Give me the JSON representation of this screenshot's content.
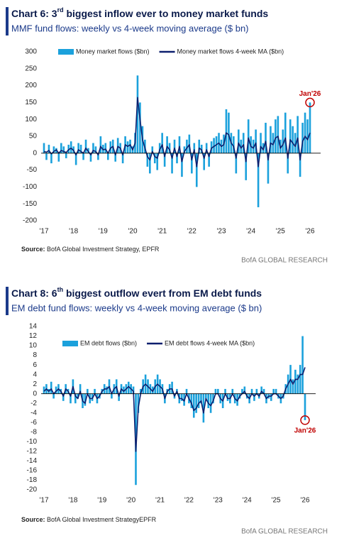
{
  "chart_data": [
    {
      "type": "bar",
      "title": [
        "Chart 6: 3",
        "rd",
        " biggest inflow ever to money market funds"
      ],
      "subtitle": "MMF fund flows: weekly vs 4-week moving average ($ bn)",
      "categories": [
        "'17",
        null,
        null,
        null,
        null,
        null,
        null,
        null,
        null,
        null,
        null,
        null,
        "'18",
        null,
        null,
        null,
        null,
        null,
        null,
        null,
        null,
        null,
        null,
        null,
        "'19",
        null,
        null,
        null,
        null,
        null,
        null,
        null,
        null,
        null,
        null,
        null,
        "'20",
        null,
        null,
        null,
        null,
        null,
        null,
        null,
        null,
        null,
        null,
        null,
        "'21",
        null,
        null,
        null,
        null,
        null,
        null,
        null,
        null,
        null,
        null,
        null,
        "'22",
        null,
        null,
        null,
        null,
        null,
        null,
        null,
        null,
        null,
        null,
        null,
        "'23",
        null,
        null,
        null,
        null,
        null,
        null,
        null,
        null,
        null,
        null,
        null,
        "'24",
        null,
        null,
        null,
        null,
        null,
        null,
        null,
        null,
        null,
        null,
        null,
        "'25",
        null,
        null,
        null,
        null,
        null,
        null,
        null,
        null,
        null,
        null,
        null,
        "'26"
      ],
      "series": [
        {
          "name": "Money market flows ($bn)",
          "type": "bar",
          "color": "#1ba1dc",
          "values": [
            30,
            -20,
            25,
            -30,
            20,
            15,
            -25,
            30,
            20,
            -15,
            25,
            35,
            20,
            -35,
            30,
            25,
            -20,
            40,
            15,
            -25,
            30,
            20,
            -20,
            50,
            25,
            30,
            -20,
            35,
            40,
            -25,
            45,
            30,
            -30,
            50,
            35,
            40,
            20,
            60,
            230,
            150,
            80,
            40,
            -40,
            -60,
            20,
            -30,
            -50,
            30,
            60,
            -40,
            50,
            30,
            -60,
            40,
            -30,
            50,
            -70,
            20,
            40,
            55,
            -60,
            30,
            -100,
            40,
            25,
            -50,
            30,
            -40,
            35,
            45,
            50,
            60,
            40,
            55,
            130,
            120,
            60,
            50,
            -60,
            70,
            40,
            60,
            -80,
            100,
            50,
            40,
            70,
            -160,
            60,
            30,
            90,
            -90,
            80,
            60,
            100,
            110,
            40,
            70,
            120,
            -60,
            100,
            80,
            60,
            110,
            -70,
            90,
            120,
            100,
            150
          ]
        },
        {
          "name": "Money market flows 4-week MA ($bn)",
          "type": "line",
          "color": "#0d1f6e",
          "values": [
            5,
            3,
            8,
            -2,
            5,
            10,
            0,
            8,
            5,
            2,
            10,
            15,
            8,
            -5,
            10,
            5,
            0,
            15,
            5,
            -5,
            8,
            5,
            -5,
            20,
            10,
            12,
            0,
            15,
            20,
            -5,
            20,
            15,
            -5,
            25,
            20,
            25,
            10,
            30,
            165,
            100,
            40,
            15,
            -10,
            -20,
            5,
            -10,
            -15,
            10,
            25,
            -10,
            20,
            10,
            -15,
            15,
            -10,
            20,
            -25,
            5,
            15,
            25,
            -20,
            10,
            -40,
            15,
            10,
            -15,
            10,
            -10,
            15,
            20,
            25,
            30,
            20,
            25,
            60,
            55,
            30,
            20,
            -15,
            30,
            15,
            25,
            -25,
            45,
            20,
            15,
            30,
            -40,
            20,
            10,
            35,
            -20,
            30,
            25,
            45,
            50,
            15,
            25,
            45,
            -15,
            40,
            30,
            20,
            45,
            -20,
            35,
            50,
            40,
            60
          ]
        }
      ],
      "ylim": [
        -200,
        300
      ],
      "yticks": [
        -200,
        -150,
        -100,
        -50,
        0,
        50,
        100,
        150,
        200,
        250,
        300
      ],
      "annotation": "Jan'26",
      "source_label": "Source:",
      "source": "BofA Global Investment Strategy, EPFR",
      "footer": "BofA GLOBAL RESEARCH"
    },
    {
      "type": "bar",
      "title": [
        "Chart 8: 6",
        "th",
        " biggest outflow evert from EM debt funds"
      ],
      "subtitle": "EM debt fund flows: weekly vs 4-week moving average ($ bn)",
      "categories": [
        "'17",
        null,
        null,
        null,
        null,
        null,
        null,
        null,
        null,
        null,
        null,
        null,
        "'18",
        null,
        null,
        null,
        null,
        null,
        null,
        null,
        null,
        null,
        null,
        null,
        "'19",
        null,
        null,
        null,
        null,
        null,
        null,
        null,
        null,
        null,
        null,
        null,
        "'20",
        null,
        null,
        null,
        null,
        null,
        null,
        null,
        null,
        null,
        null,
        null,
        "'21",
        null,
        null,
        null,
        null,
        null,
        null,
        null,
        null,
        null,
        null,
        null,
        "'22",
        null,
        null,
        null,
        null,
        null,
        null,
        null,
        null,
        null,
        null,
        null,
        "'23",
        null,
        null,
        null,
        null,
        null,
        null,
        null,
        null,
        null,
        null,
        null,
        "'24",
        null,
        null,
        null,
        null,
        null,
        null,
        null,
        null,
        null,
        null,
        null,
        "'25",
        null,
        null,
        null,
        null,
        null,
        null,
        null,
        null,
        null,
        null,
        null,
        "'26"
      ],
      "series": [
        {
          "name": "EM debt flows ($bn)",
          "type": "bar",
          "color": "#1ba1dc",
          "values": [
            1.5,
            2,
            1,
            2.5,
            -1,
            1.5,
            2,
            1,
            -1.5,
            2,
            1,
            -2,
            3,
            -2,
            -1,
            2,
            -3,
            -2.5,
            1,
            -2,
            -1.5,
            1,
            -2,
            -1,
            1,
            2,
            1.5,
            3,
            -1,
            2,
            3,
            -1.5,
            2,
            1.5,
            2,
            2.5,
            2,
            1.5,
            -19,
            -4,
            1,
            3,
            4,
            3,
            2,
            1.5,
            3,
            4,
            3,
            2,
            -2,
            1,
            2,
            2.5,
            -1,
            1,
            -2,
            -1.5,
            -2.5,
            1,
            -2,
            -3,
            -5,
            -4,
            -3,
            -2,
            -6,
            -1,
            -3,
            -4,
            -2,
            1,
            1,
            -2,
            -3,
            1,
            -1.5,
            -2,
            1,
            -2,
            -2.5,
            -1,
            1,
            1.5,
            -1,
            -2,
            1,
            -1.5,
            1,
            -1,
            1.5,
            1,
            -2,
            -1,
            -1.5,
            1,
            1,
            -1,
            -2,
            -1,
            2,
            4,
            6,
            3,
            5,
            4,
            6,
            12,
            -5.5
          ]
        },
        {
          "name": "EM debt flows 4-week MA ($bn)",
          "type": "line",
          "color": "#0d1f6e",
          "values": [
            0.5,
            1,
            0.5,
            1,
            0,
            0.5,
            1,
            0.5,
            -0.5,
            1,
            0.5,
            -0.5,
            1.5,
            -0.5,
            -1,
            0.5,
            -1.5,
            -2,
            0,
            -1,
            -1,
            0,
            -1,
            -0.5,
            0.5,
            1,
            1,
            1.5,
            0,
            1,
            1.5,
            -0.5,
            1,
            0.5,
            1,
            1.5,
            1,
            0.5,
            -12,
            -3,
            0,
            1.5,
            2,
            1.5,
            1,
            0.5,
            1.5,
            2,
            1.5,
            1,
            -1,
            0.5,
            1,
            1,
            -0.5,
            0.5,
            -1,
            -1,
            -1.5,
            0,
            -1,
            -2,
            -3.5,
            -3,
            -2,
            -1.5,
            -4,
            -1,
            -2,
            -2.5,
            -1.5,
            0,
            0,
            -1,
            -1.5,
            0,
            -1,
            -1,
            0,
            -1,
            -1.5,
            -0.5,
            0,
            0.5,
            -0.5,
            -1,
            0,
            -0.5,
            0,
            -0.5,
            0.5,
            0,
            -1,
            -0.5,
            -0.5,
            0,
            0,
            -0.5,
            -1,
            -0.5,
            1,
            2,
            3,
            2,
            3,
            3,
            4,
            4,
            5.5
          ]
        }
      ],
      "ylim": [
        -20,
        14
      ],
      "yticks": [
        -20,
        -18,
        -16,
        -14,
        -12,
        -10,
        -8,
        -6,
        -4,
        -2,
        0,
        2,
        4,
        6,
        8,
        10,
        12,
        14
      ],
      "annotation": "Jan'26",
      "source_label": "Source:",
      "source": "BofA Global Investment StrategyEPFR",
      "footer": "BofA GLOBAL RESEARCH"
    }
  ]
}
